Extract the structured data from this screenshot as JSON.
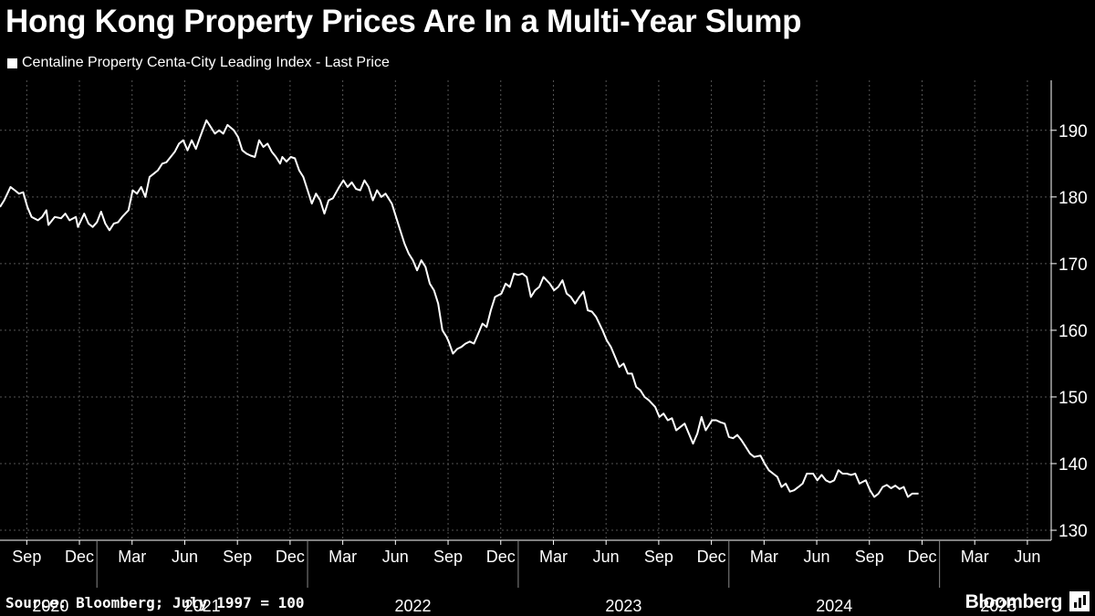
{
  "header": {
    "title": "Hong Kong Property Prices Are In a Multi-Year Slump",
    "legend_label": "Centaline Property Centa-City Leading Index - Last Price"
  },
  "footer": {
    "source": "Source: Bloomberg; July 1997 = 100",
    "brand": "Bloomberg"
  },
  "colors": {
    "background": "#000000",
    "line": "#ffffff",
    "grid": "#555555"
  },
  "chart_data": {
    "type": "line",
    "title": "Hong Kong Property Prices Are In a Multi-Year Slump",
    "xlabel": "",
    "ylabel": "",
    "xlim": [
      2020.54,
      2025.53
    ],
    "ylim": [
      128.5,
      197.5
    ],
    "y_ticks": [
      130,
      140,
      150,
      160,
      170,
      180,
      190
    ],
    "x_ticks": [
      {
        "label": "Sep",
        "x": 2020.667
      },
      {
        "label": "Dec",
        "x": 2020.917
      },
      {
        "label": "Mar",
        "x": 2021.167
      },
      {
        "label": "Jun",
        "x": 2021.417
      },
      {
        "label": "Sep",
        "x": 2021.667
      },
      {
        "label": "Dec",
        "x": 2021.917
      },
      {
        "label": "Mar",
        "x": 2022.167
      },
      {
        "label": "Jun",
        "x": 2022.417
      },
      {
        "label": "Sep",
        "x": 2022.667
      },
      {
        "label": "Dec",
        "x": 2022.917
      },
      {
        "label": "Mar",
        "x": 2023.167
      },
      {
        "label": "Jun",
        "x": 2023.417
      },
      {
        "label": "Sep",
        "x": 2023.667
      },
      {
        "label": "Dec",
        "x": 2023.917
      },
      {
        "label": "Mar",
        "x": 2024.167
      },
      {
        "label": "Jun",
        "x": 2024.417
      },
      {
        "label": "Sep",
        "x": 2024.667
      },
      {
        "label": "Dec",
        "x": 2024.917
      },
      {
        "label": "Mar",
        "x": 2025.167
      },
      {
        "label": "Jun",
        "x": 2025.417
      }
    ],
    "year_labels": [
      {
        "label": "2020",
        "x": 2020.78
      },
      {
        "label": "2021",
        "x": 2021.5
      },
      {
        "label": "2022",
        "x": 2022.5
      },
      {
        "label": "2023",
        "x": 2023.5
      },
      {
        "label": "2024",
        "x": 2024.5
      },
      {
        "label": "2025",
        "x": 2025.28
      }
    ],
    "year_boundaries": [
      2021.0,
      2022.0,
      2023.0,
      2024.0,
      2025.0
    ],
    "series": [
      {
        "name": "Centaline Property Centa-City Leading Index - Last Price",
        "points": [
          [
            2020.54,
            178.5
          ],
          [
            2020.56,
            179.5
          ],
          [
            2020.59,
            181.5
          ],
          [
            2020.61,
            181.0
          ],
          [
            2020.63,
            180.5
          ],
          [
            2020.65,
            180.7
          ],
          [
            2020.67,
            178.5
          ],
          [
            2020.69,
            177.0
          ],
          [
            2020.72,
            176.5
          ],
          [
            2020.74,
            177.0
          ],
          [
            2020.76,
            178.0
          ],
          [
            2020.77,
            175.8
          ],
          [
            2020.8,
            177.0
          ],
          [
            2020.83,
            176.8
          ],
          [
            2020.85,
            177.5
          ],
          [
            2020.87,
            176.5
          ],
          [
            2020.9,
            177.0
          ],
          [
            2020.91,
            175.5
          ],
          [
            2020.94,
            177.5
          ],
          [
            2020.96,
            176.0
          ],
          [
            2020.98,
            175.5
          ],
          [
            2021.0,
            176.2
          ],
          [
            2021.02,
            177.8
          ],
          [
            2021.04,
            176.0
          ],
          [
            2021.06,
            175.0
          ],
          [
            2021.08,
            176.0
          ],
          [
            2021.1,
            176.2
          ],
          [
            2021.12,
            177.0
          ],
          [
            2021.15,
            178.0
          ],
          [
            2021.17,
            181.0
          ],
          [
            2021.19,
            180.5
          ],
          [
            2021.21,
            181.5
          ],
          [
            2021.23,
            180.0
          ],
          [
            2021.25,
            183.0
          ],
          [
            2021.27,
            183.5
          ],
          [
            2021.29,
            184.0
          ],
          [
            2021.31,
            185.0
          ],
          [
            2021.33,
            185.2
          ],
          [
            2021.35,
            186.0
          ],
          [
            2021.37,
            186.8
          ],
          [
            2021.39,
            188.0
          ],
          [
            2021.41,
            188.5
          ],
          [
            2021.43,
            187.0
          ],
          [
            2021.45,
            188.5
          ],
          [
            2021.47,
            187.2
          ],
          [
            2021.49,
            189.0
          ],
          [
            2021.52,
            191.5
          ],
          [
            2021.54,
            190.5
          ],
          [
            2021.56,
            189.5
          ],
          [
            2021.58,
            190.0
          ],
          [
            2021.6,
            189.5
          ],
          [
            2021.62,
            190.8
          ],
          [
            2021.65,
            190.0
          ],
          [
            2021.67,
            189.0
          ],
          [
            2021.69,
            187.0
          ],
          [
            2021.71,
            186.5
          ],
          [
            2021.73,
            186.2
          ],
          [
            2021.75,
            186.0
          ],
          [
            2021.77,
            188.5
          ],
          [
            2021.79,
            187.5
          ],
          [
            2021.81,
            188.0
          ],
          [
            2021.83,
            186.8
          ],
          [
            2021.85,
            186.0
          ],
          [
            2021.87,
            185.0
          ],
          [
            2021.88,
            186.0
          ],
          [
            2021.9,
            185.3
          ],
          [
            2021.92,
            186.0
          ],
          [
            2021.94,
            185.8
          ],
          [
            2021.96,
            184.0
          ],
          [
            2021.98,
            183.0
          ],
          [
            2022.0,
            181.0
          ],
          [
            2022.02,
            179.0
          ],
          [
            2022.04,
            180.5
          ],
          [
            2022.06,
            179.5
          ],
          [
            2022.08,
            177.5
          ],
          [
            2022.1,
            179.5
          ],
          [
            2022.12,
            179.8
          ],
          [
            2022.15,
            181.5
          ],
          [
            2022.17,
            182.5
          ],
          [
            2022.19,
            181.5
          ],
          [
            2022.21,
            182.2
          ],
          [
            2022.23,
            181.2
          ],
          [
            2022.25,
            181.0
          ],
          [
            2022.27,
            182.5
          ],
          [
            2022.29,
            181.5
          ],
          [
            2022.31,
            179.5
          ],
          [
            2022.33,
            181.0
          ],
          [
            2022.35,
            180.0
          ],
          [
            2022.37,
            180.5
          ],
          [
            2022.4,
            179.0
          ],
          [
            2022.42,
            177.0
          ],
          [
            2022.44,
            175.0
          ],
          [
            2022.46,
            173.0
          ],
          [
            2022.48,
            171.5
          ],
          [
            2022.5,
            170.5
          ],
          [
            2022.52,
            169.0
          ],
          [
            2022.54,
            170.5
          ],
          [
            2022.56,
            169.5
          ],
          [
            2022.58,
            167.0
          ],
          [
            2022.6,
            166.0
          ],
          [
            2022.62,
            164.0
          ],
          [
            2022.64,
            160.0
          ],
          [
            2022.66,
            159.0
          ],
          [
            2022.67,
            158.3
          ],
          [
            2022.69,
            156.5
          ],
          [
            2022.71,
            157.2
          ],
          [
            2022.73,
            157.5
          ],
          [
            2022.75,
            158.0
          ],
          [
            2022.77,
            158.3
          ],
          [
            2022.79,
            158.0
          ],
          [
            2022.81,
            159.5
          ],
          [
            2022.83,
            161.0
          ],
          [
            2022.85,
            160.5
          ],
          [
            2022.87,
            163.0
          ],
          [
            2022.89,
            165.0
          ],
          [
            2022.92,
            165.5
          ],
          [
            2022.94,
            167.0
          ],
          [
            2022.96,
            166.5
          ],
          [
            2022.98,
            168.5
          ],
          [
            2023.0,
            168.3
          ],
          [
            2023.02,
            168.5
          ],
          [
            2023.04,
            168.0
          ],
          [
            2023.06,
            165.0
          ],
          [
            2023.08,
            166.0
          ],
          [
            2023.1,
            166.5
          ],
          [
            2023.12,
            168.0
          ],
          [
            2023.15,
            167.0
          ],
          [
            2023.17,
            166.0
          ],
          [
            2023.19,
            166.5
          ],
          [
            2023.21,
            167.5
          ],
          [
            2023.23,
            165.5
          ],
          [
            2023.25,
            165.0
          ],
          [
            2023.27,
            164.0
          ],
          [
            2023.29,
            165.0
          ],
          [
            2023.31,
            165.8
          ],
          [
            2023.33,
            163.0
          ],
          [
            2023.35,
            162.8
          ],
          [
            2023.37,
            162.0
          ],
          [
            2023.4,
            160.0
          ],
          [
            2023.42,
            158.5
          ],
          [
            2023.44,
            157.5
          ],
          [
            2023.46,
            156.0
          ],
          [
            2023.48,
            154.5
          ],
          [
            2023.5,
            155.0
          ],
          [
            2023.52,
            153.5
          ],
          [
            2023.54,
            153.5
          ],
          [
            2023.56,
            151.5
          ],
          [
            2023.58,
            151.0
          ],
          [
            2023.6,
            150.0
          ],
          [
            2023.62,
            149.5
          ],
          [
            2023.65,
            148.5
          ],
          [
            2023.67,
            147.0
          ],
          [
            2023.69,
            147.5
          ],
          [
            2023.71,
            146.5
          ],
          [
            2023.73,
            146.8
          ],
          [
            2023.75,
            145.0
          ],
          [
            2023.77,
            145.5
          ],
          [
            2023.79,
            146.0
          ],
          [
            2023.81,
            144.5
          ],
          [
            2023.83,
            143.0
          ],
          [
            2023.85,
            144.5
          ],
          [
            2023.87,
            147.0
          ],
          [
            2023.89,
            145.0
          ],
          [
            2023.92,
            146.5
          ],
          [
            2023.94,
            146.5
          ],
          [
            2023.96,
            146.2
          ],
          [
            2023.98,
            146.0
          ],
          [
            2024.0,
            144.0
          ],
          [
            2024.02,
            143.8
          ],
          [
            2024.04,
            144.3
          ],
          [
            2024.06,
            143.5
          ],
          [
            2024.08,
            142.5
          ],
          [
            2024.1,
            141.5
          ],
          [
            2024.12,
            141.0
          ],
          [
            2024.15,
            141.2
          ],
          [
            2024.17,
            140.0
          ],
          [
            2024.19,
            139.0
          ],
          [
            2024.21,
            138.5
          ],
          [
            2024.23,
            138.0
          ],
          [
            2024.25,
            136.5
          ],
          [
            2024.27,
            137.0
          ],
          [
            2024.29,
            135.8
          ],
          [
            2024.31,
            136.0
          ],
          [
            2024.33,
            136.5
          ],
          [
            2024.35,
            137.0
          ],
          [
            2024.37,
            138.5
          ],
          [
            2024.4,
            138.5
          ],
          [
            2024.42,
            137.5
          ],
          [
            2024.44,
            138.3
          ],
          [
            2024.46,
            137.5
          ],
          [
            2024.48,
            137.2
          ],
          [
            2024.5,
            137.5
          ],
          [
            2024.52,
            139.0
          ],
          [
            2024.54,
            138.5
          ],
          [
            2024.56,
            138.5
          ],
          [
            2024.58,
            138.3
          ],
          [
            2024.6,
            138.5
          ],
          [
            2024.62,
            137.0
          ],
          [
            2024.65,
            137.5
          ],
          [
            2024.67,
            136.0
          ],
          [
            2024.69,
            135.0
          ],
          [
            2024.71,
            135.5
          ],
          [
            2024.73,
            136.5
          ],
          [
            2024.75,
            136.8
          ],
          [
            2024.77,
            136.3
          ],
          [
            2024.79,
            136.7
          ],
          [
            2024.81,
            136.2
          ],
          [
            2024.83,
            136.5
          ],
          [
            2024.85,
            135.0
          ],
          [
            2024.87,
            135.5
          ],
          [
            2024.9,
            135.5
          ]
        ]
      }
    ]
  }
}
